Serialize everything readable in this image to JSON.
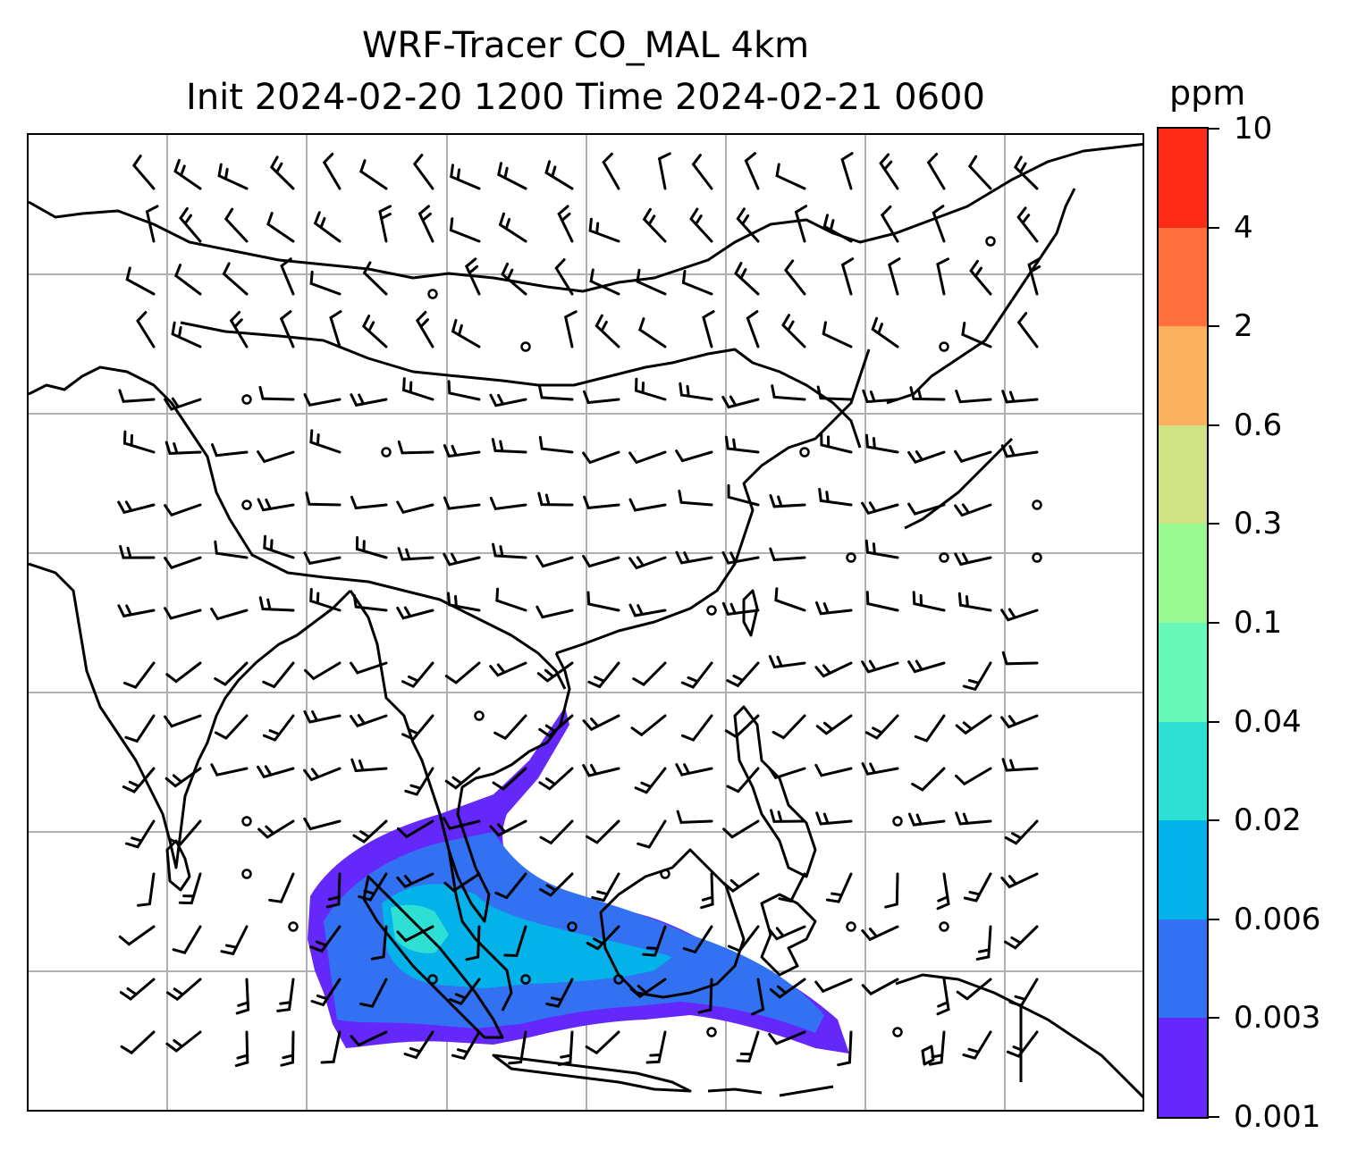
{
  "title": {
    "line1": "WRF-Tracer CO_MAL 4km",
    "line2": "Init 2024-02-20 1200 Time 2024-02-21 0600"
  },
  "map": {
    "grid": true,
    "coastline_color": "#000000",
    "grid_color": "#b0b0b0",
    "wind_barbs": true,
    "tracer_plume_region": "Malaysia / Borneo / Java Sea"
  },
  "colorbar": {
    "units": "ppm",
    "levels": [
      "0.001",
      "0.003",
      "0.006",
      "0.02",
      "0.04",
      "0.1",
      "0.3",
      "0.6",
      "2",
      "4",
      "10"
    ],
    "colors": [
      "#6428fa",
      "#3272f2",
      "#04b2ea",
      "#2ee0d3",
      "#66f9b9",
      "#9bf993",
      "#d1e185",
      "#fcb15e",
      "#ff703c",
      "#ff2a18"
    ]
  }
}
